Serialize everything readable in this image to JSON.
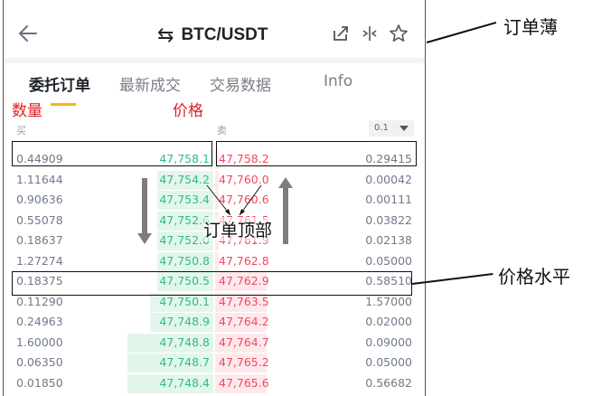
{
  "header": {
    "pair": "BTC/USDT",
    "swap_glyph": "⇆",
    "back_icon": "back-arrow-icon",
    "icons": [
      "share-icon",
      "compare-icon",
      "star-icon"
    ]
  },
  "tabs": [
    "委托订单",
    "最新成交",
    "交易数据",
    "Info"
  ],
  "columns": {
    "buy": "买",
    "sell": "卖",
    "depth": "0.1"
  },
  "annotations": {
    "quantity": "数量",
    "price": "价格",
    "top_of_book": "订单顶部",
    "order_book": "订单薄",
    "price_level": "价格水平"
  },
  "book": [
    {
      "bid_qty": "0.44909",
      "bid_price": "47,758.1",
      "ask_price": "47,758.2",
      "ask_qty": "0.29415",
      "bid_depth": 0.02,
      "ask_depth": 0.02
    },
    {
      "bid_qty": "1.11644",
      "bid_price": "47,754.2",
      "ask_price": "47,760.0",
      "ask_qty": "0.00042",
      "bid_depth": 0.28,
      "ask_depth": 0.02
    },
    {
      "bid_qty": "0.90636",
      "bid_price": "47,753.4",
      "ask_price": "47,760.6",
      "ask_qty": "0.00111",
      "bid_depth": 0.28,
      "ask_depth": 0.02
    },
    {
      "bid_qty": "0.55078",
      "bid_price": "47,752.6",
      "ask_price": "47,761.5",
      "ask_qty": "0.03822",
      "bid_depth": 0.28,
      "ask_depth": 0.02
    },
    {
      "bid_qty": "0.18637",
      "bid_price": "47,752.0",
      "ask_price": "47,761.9",
      "ask_qty": "0.02138",
      "bid_depth": 0.28,
      "ask_depth": 0.02
    },
    {
      "bid_qty": "1.27274",
      "bid_price": "47,750.8",
      "ask_price": "47,762.8",
      "ask_qty": "0.05000",
      "bid_depth": 0.28,
      "ask_depth": 0.02
    },
    {
      "bid_qty": "0.18375",
      "bid_price": "47,750.5",
      "ask_price": "47,762.9",
      "ask_qty": "0.58510",
      "bid_depth": 0.28,
      "ask_depth": 0.26
    },
    {
      "bid_qty": "0.11290",
      "bid_price": "47,750.1",
      "ask_price": "47,763.5",
      "ask_qty": "1.57000",
      "bid_depth": 0.32,
      "ask_depth": 0.26
    },
    {
      "bid_qty": "0.24963",
      "bid_price": "47,748.9",
      "ask_price": "47,764.2",
      "ask_qty": "0.02000",
      "bid_depth": 0.32,
      "ask_depth": 0.26
    },
    {
      "bid_qty": "1.60000",
      "bid_price": "47,748.8",
      "ask_price": "47,764.7",
      "ask_qty": "0.09000",
      "bid_depth": 0.43,
      "ask_depth": 0.26
    },
    {
      "bid_qty": "0.06350",
      "bid_price": "47,748.7",
      "ask_price": "47,765.2",
      "ask_qty": "0.05000",
      "bid_depth": 0.43,
      "ask_depth": 0.26
    },
    {
      "bid_qty": "0.01850",
      "bid_price": "47,748.4",
      "ask_price": "47,765.6",
      "ask_qty": "0.56682",
      "bid_depth": 0.43,
      "ask_depth": 0.26
    }
  ]
}
